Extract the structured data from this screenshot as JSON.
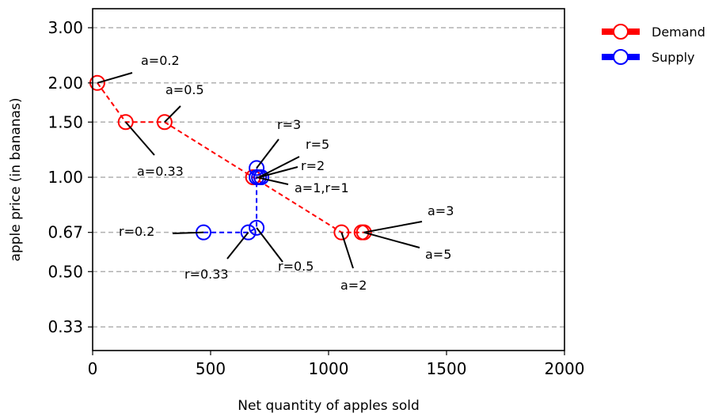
{
  "chart_data": {
    "type": "scatter",
    "xlabel": "Net quantity of apples sold",
    "ylabel": "apple price (in bananas)",
    "xlim": [
      0,
      2000
    ],
    "ylim": [
      0.28,
      3.45
    ],
    "y_scale": "log",
    "x_ticks": [
      0,
      500,
      1000,
      1500,
      2000
    ],
    "y_ticks": [
      {
        "value": 0.333,
        "label": "0.33"
      },
      {
        "value": 0.5,
        "label": "0.50"
      },
      {
        "value": 0.667,
        "label": "0.67"
      },
      {
        "value": 1.0,
        "label": "1.00"
      },
      {
        "value": 1.5,
        "label": "1.50"
      },
      {
        "value": 2.0,
        "label": "2.00"
      },
      {
        "value": 3.0,
        "label": "3.00"
      }
    ],
    "grid": "horizontal dashed at y ticks",
    "legend_position": "outside right, top",
    "series": [
      {
        "name": "Demand",
        "color": "#ff0000",
        "points": [
          {
            "x": 20,
            "y": 2.0
          },
          {
            "x": 140,
            "y": 1.5
          },
          {
            "x": 305,
            "y": 1.5
          },
          {
            "x": 680,
            "y": 1.0
          },
          {
            "x": 1055,
            "y": 0.667
          },
          {
            "x": 1140,
            "y": 0.667
          },
          {
            "x": 1150,
            "y": 0.667
          }
        ]
      },
      {
        "name": "Supply",
        "color": "#0000ff",
        "points": [
          {
            "x": 470,
            "y": 0.667
          },
          {
            "x": 660,
            "y": 0.667
          },
          {
            "x": 695,
            "y": 0.69
          },
          {
            "x": 695,
            "y": 1.0
          },
          {
            "x": 705,
            "y": 1.0
          },
          {
            "x": 715,
            "y": 1.0
          },
          {
            "x": 695,
            "y": 1.07
          }
        ]
      }
    ],
    "annotations": [
      {
        "text": "a=0.2",
        "x": 20,
        "y": 2.0
      },
      {
        "text": "a=0.5",
        "x": 305,
        "y": 1.5
      },
      {
        "text": "a=0.33",
        "x": 140,
        "y": 1.5
      },
      {
        "text": "r=3",
        "x": 695,
        "y": 1.07
      },
      {
        "text": "r=5",
        "x": 705,
        "y": 1.0
      },
      {
        "text": "r=2",
        "x": 705,
        "y": 1.0
      },
      {
        "text": "a=1,r=1",
        "x": 695,
        "y": 1.0
      },
      {
        "text": "a=3",
        "x": 1150,
        "y": 0.667
      },
      {
        "text": "a=5",
        "x": 1150,
        "y": 0.667
      },
      {
        "text": "a=2",
        "x": 1055,
        "y": 0.667
      },
      {
        "text": "r=0.2",
        "x": 470,
        "y": 0.667
      },
      {
        "text": "r=0.33",
        "x": 660,
        "y": 0.667
      },
      {
        "text": "r=0.5",
        "x": 695,
        "y": 0.69
      }
    ]
  }
}
